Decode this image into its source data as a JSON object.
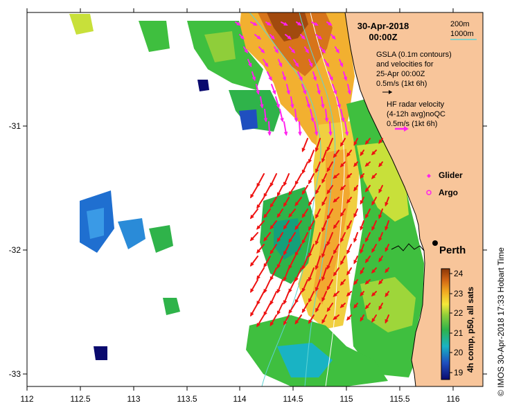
{
  "title": {
    "date": "30-Apr-2018",
    "time": "00:00Z"
  },
  "scale": {
    "contour_200": "200m",
    "contour_1000": "1000m",
    "contour_200_color": "#ffffff",
    "contour_1000_color": "#5fd3d3"
  },
  "legend": {
    "gsla_line1": "GSLA (0.1m contours)",
    "gsla_line2": "and velocities for",
    "gsla_line3": "25-Apr 00:00Z",
    "gsla_ref": "0.5m/s (1kt 6h)",
    "hf_line1": "HF radar velocity",
    "hf_line2": "(4-12h avg)noQC",
    "hf_ref": "0.5m/s (1kt 6h)",
    "glider": "Glider",
    "argo": "Argo"
  },
  "place": {
    "city": "Perth"
  },
  "axes": {
    "x_ticks": [
      "112",
      "112.5",
      "113",
      "113.5",
      "114",
      "114.5",
      "115",
      "115.5",
      "116"
    ],
    "y_ticks": [
      "-31",
      "-32",
      "-33"
    ]
  },
  "colorbar": {
    "label": "4h comp, p50, all sats",
    "ticks": [
      "24",
      "23",
      "22",
      "21",
      "20",
      "19"
    ],
    "min": 18.7,
    "max": 24.3
  },
  "credit": "©  IMOS 30-Apr-2018 17:33 Hobart Time",
  "colors": {
    "land": "#f8c59a",
    "hf_arrow": "#ee1111",
    "gsla_arrow": "#ff22ee",
    "coast": "#000000"
  },
  "map_extent": {
    "lon_min": 112.0,
    "lon_max": 116.3,
    "lat_min": -33.1,
    "lat_max": -30.1
  }
}
